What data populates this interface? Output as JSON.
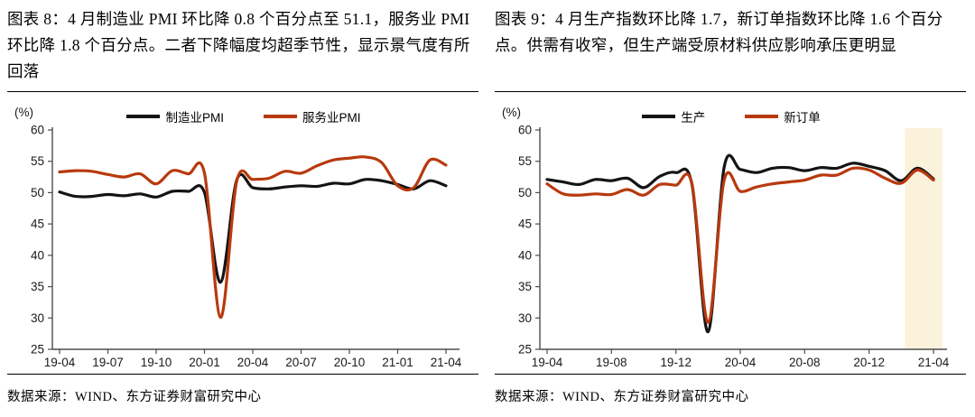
{
  "colors": {
    "axis": "#4d4d4d",
    "tick_label": "#1a1a1a",
    "series_black": "#141414",
    "series_red": "#b8390e",
    "highlight_band": "#fbf2dc",
    "rule": "#000000"
  },
  "chart_data": [
    {
      "type": "line",
      "caption": "图表 8：4 月制造业 PMI 环比降 0.8 个百分点至 51.1，服务业 PMI 环比降 1.8 个百分点。二者下降幅度均超季节性，显示景气度有所回落",
      "unit_label": "(%)",
      "grid": false,
      "legend_position": "top-center",
      "ylim": [
        25,
        60
      ],
      "ytick_step": 5,
      "x": [
        "19-04",
        "19-05",
        "19-06",
        "19-07",
        "19-08",
        "19-09",
        "19-10",
        "19-11",
        "19-12",
        "20-01",
        "20-02",
        "20-03",
        "20-04",
        "20-05",
        "20-06",
        "20-07",
        "20-08",
        "20-09",
        "20-10",
        "20-11",
        "20-12",
        "21-01",
        "21-02",
        "21-03",
        "21-04"
      ],
      "xticks": [
        "19-04",
        "19-07",
        "19-10",
        "20-01",
        "20-04",
        "20-07",
        "20-10",
        "21-01",
        "21-04"
      ],
      "series": [
        {
          "name": "制造业PMI",
          "color": "#141414",
          "values": [
            50.1,
            49.4,
            49.4,
            49.7,
            49.5,
            49.8,
            49.3,
            50.2,
            50.2,
            50.0,
            35.7,
            52.0,
            50.8,
            50.6,
            50.9,
            51.1,
            51.0,
            51.5,
            51.4,
            52.1,
            51.9,
            51.3,
            50.6,
            51.9,
            51.1
          ]
        },
        {
          "name": "服务业PMI",
          "color": "#b8390e",
          "values": [
            53.3,
            53.5,
            53.4,
            52.9,
            52.5,
            53.0,
            51.4,
            53.5,
            53.0,
            53.1,
            30.1,
            51.8,
            52.1,
            52.3,
            53.4,
            53.1,
            54.3,
            55.2,
            55.5,
            55.7,
            54.8,
            51.1,
            50.8,
            55.2,
            54.4
          ]
        }
      ],
      "source": "数据来源：WIND、东方证券财富研究中心"
    },
    {
      "type": "line",
      "caption": "图表 9：4 月生产指数环比降 1.7，新订单指数环比降 1.6 个百分点。供需有收窄，但生产端受原材料供应影响承压更明显",
      "unit_label": "(%)",
      "grid": false,
      "legend_position": "top-center",
      "ylim": [
        25,
        60
      ],
      "ytick_step": 5,
      "x": [
        "19-04",
        "19-05",
        "19-06",
        "19-07",
        "19-08",
        "19-09",
        "19-10",
        "19-11",
        "19-12",
        "20-01",
        "20-02",
        "20-03",
        "20-04",
        "20-05",
        "20-06",
        "20-07",
        "20-08",
        "20-09",
        "20-10",
        "20-11",
        "20-12",
        "21-01",
        "21-02",
        "21-03",
        "21-04"
      ],
      "xticks": [
        "19-04",
        "19-08",
        "19-12",
        "20-04",
        "20-08",
        "20-12",
        "21-04"
      ],
      "highlight_band": {
        "from": "21-02",
        "to": "21-04",
        "color": "#fbf2dc"
      },
      "series": [
        {
          "name": "生产",
          "color": "#141414",
          "values": [
            52.1,
            51.7,
            51.3,
            52.1,
            51.9,
            52.3,
            50.8,
            52.6,
            53.2,
            51.3,
            27.8,
            54.1,
            53.7,
            53.2,
            53.9,
            54.0,
            53.5,
            54.0,
            53.9,
            54.7,
            54.2,
            53.5,
            51.9,
            53.9,
            52.2
          ]
        },
        {
          "name": "新订单",
          "color": "#b8390e",
          "values": [
            51.4,
            49.8,
            49.6,
            49.8,
            49.7,
            50.5,
            49.6,
            51.3,
            51.2,
            51.4,
            29.3,
            52.0,
            50.2,
            50.9,
            51.4,
            51.7,
            52.0,
            52.8,
            52.8,
            53.9,
            53.6,
            52.3,
            51.5,
            53.6,
            52.0
          ]
        }
      ],
      "source": "数据来源：WIND、东方证券财富研究中心"
    }
  ]
}
